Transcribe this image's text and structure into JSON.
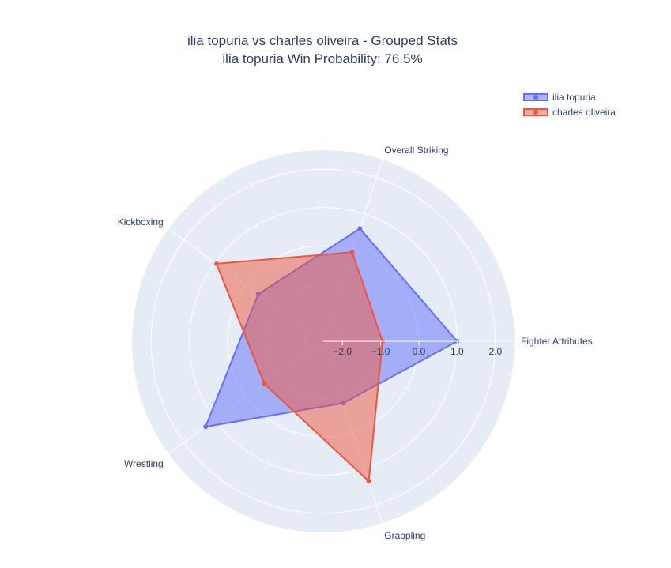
{
  "chart_data": {
    "type": "radar",
    "title": "ilia topuria vs charles oliveira - Grouped Stats",
    "subtitle": "ilia topuria Win Probability: 76.5%",
    "categories": [
      "Fighter Attributes",
      "Overall Striking",
      "Kickboxing",
      "Wrestling",
      "Grappling"
    ],
    "radial_range": [
      -2.5,
      2.5
    ],
    "radial_ticks": [
      -2.0,
      -1.0,
      0.0,
      1.0,
      2.0
    ],
    "radial_tick_labels": [
      "−2.0",
      "−1.0",
      "0.0",
      "1.0",
      "2.0"
    ],
    "grid": true,
    "legend_position": "top-right",
    "series": [
      {
        "name": "ilia topuria",
        "color": "#636efa",
        "fill": "rgba(99,110,250,0.5)",
        "values": [
          1.0,
          0.6,
          -0.4,
          1.3,
          -0.8
        ]
      },
      {
        "name": "charles oliveira",
        "color": "#ef553b",
        "fill": "rgba(239,85,59,0.5)",
        "values": [
          -0.95,
          -0.05,
          0.95,
          -0.6,
          1.35
        ]
      }
    ]
  }
}
